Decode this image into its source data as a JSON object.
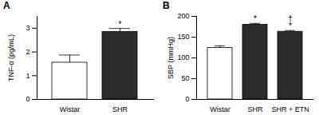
{
  "chart_data": [
    {
      "type": "bar",
      "title": "A",
      "y_label": "TNF-α (pg/mL)",
      "categories": [
        "Wistar",
        "SHR"
      ],
      "values": [
        1.55,
        2.85
      ],
      "errors": [
        0.32,
        0.14
      ],
      "colors": [
        "#ffffff",
        "#2b2b2b"
      ],
      "annotations": [
        [],
        [
          "*"
        ]
      ],
      "ylim": [
        0,
        3.5
      ],
      "yticks": [
        0,
        1,
        2,
        3
      ]
    },
    {
      "type": "bar",
      "title": "B",
      "y_label": "SBP (mmHg)",
      "categories": [
        "Wistar",
        "SHR",
        "SHR + ETN"
      ],
      "values": [
        124,
        180,
        163
      ],
      "errors": [
        5,
        3,
        3
      ],
      "colors": [
        "#ffffff",
        "#2b2b2b",
        "#2b2b2b"
      ],
      "annotations": [
        [],
        [
          "*"
        ],
        [
          "†",
          "*"
        ]
      ],
      "ylim": [
        0,
        200
      ],
      "yticks": [
        0,
        50,
        100,
        150,
        200
      ]
    }
  ]
}
